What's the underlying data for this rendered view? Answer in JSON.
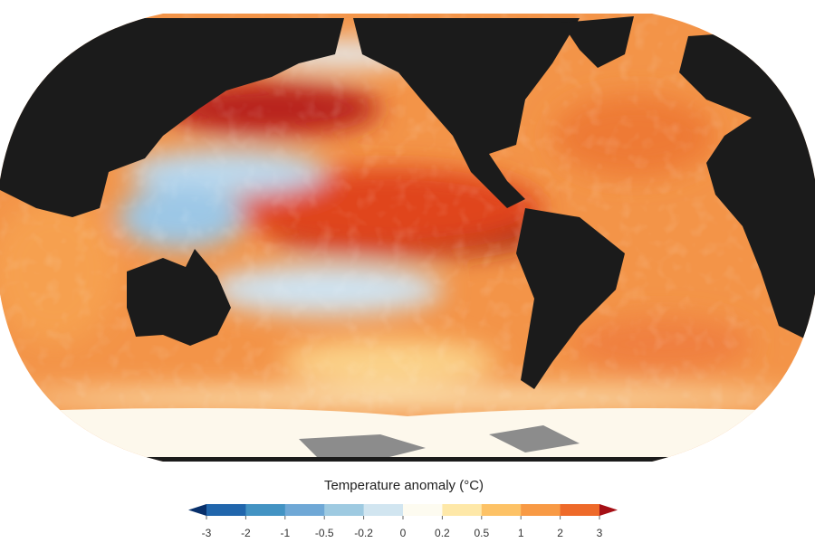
{
  "legend": {
    "title": "Temperature anomaly (°C)",
    "ticks": [
      -3,
      -2,
      -1,
      -0.5,
      -0.2,
      0,
      0.2,
      0.5,
      1,
      2,
      3
    ],
    "colors": [
      "#08306b",
      "#2166ac",
      "#4393c3",
      "#6fa8d6",
      "#9ecae1",
      "#d1e5f0",
      "#fdfbf0",
      "#fee8a8",
      "#fdc266",
      "#f89a45",
      "#ee6a2a",
      "#d73027",
      "#a50f15"
    ]
  }
}
